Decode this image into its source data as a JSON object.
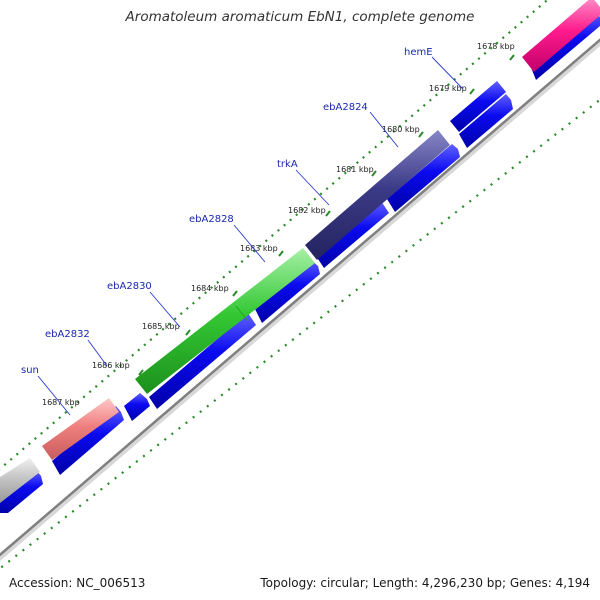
{
  "title": "Aromatoleum aromaticum EbN1, complete genome",
  "footer": {
    "accession": "Accession: NC_006513",
    "summary": "Topology: circular; Length: 4,296,230 bp; Genes: 4,194"
  },
  "colors": {
    "cds": "#0a0af0",
    "backbone": "#8c8c8c",
    "tick": "#2a8a2a",
    "label": "#1a28b0",
    "label_line": "#2a3ad0"
  },
  "ticks": [
    "1678 kbp",
    "1679 kbp",
    "1680 kbp",
    "1681 kbp",
    "1682 kbp",
    "1683 kbp",
    "1684 kbp",
    "1685 kbp",
    "1686 kbp",
    "1687 kbp"
  ],
  "genes": [
    {
      "name": "hemE"
    },
    {
      "name": "ebA2824"
    },
    {
      "name": "trkA"
    },
    {
      "name": "ebA2828"
    },
    {
      "name": "ebA2830"
    },
    {
      "name": "ebA2832"
    },
    {
      "name": "sun"
    }
  ],
  "gene_colors": [
    "#ff2090",
    "#3b3a86",
    "#34c834",
    "#f08080",
    "#c0c0c0"
  ]
}
